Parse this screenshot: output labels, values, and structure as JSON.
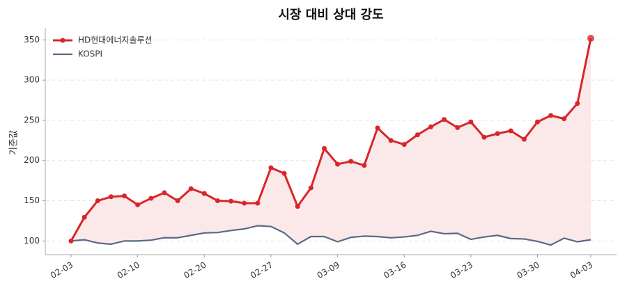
{
  "chart_data": {
    "type": "line",
    "title": "시장 대비 상대 강도",
    "y_label": "기준값",
    "categories": [
      "02-03",
      null,
      null,
      null,
      null,
      "02-10",
      null,
      null,
      null,
      null,
      "02-20",
      null,
      null,
      null,
      null,
      "02-27",
      null,
      null,
      null,
      null,
      "03-09",
      null,
      null,
      null,
      null,
      "03-16",
      null,
      null,
      null,
      null,
      "03-23",
      null,
      null,
      null,
      null,
      "03-30",
      null,
      null,
      null,
      "04-03"
    ],
    "series": [
      {
        "name": "HD현대에너지솔루션",
        "color": "#d7262b",
        "values": [
          100,
          129.5,
          150,
          155,
          156,
          145,
          153,
          160,
          150,
          165,
          159,
          150,
          149.5,
          147,
          147,
          191,
          184,
          143,
          166,
          215,
          195.5,
          199,
          194,
          240.5,
          225,
          220,
          232,
          242,
          251,
          241,
          248,
          229,
          233.5,
          237,
          226.5,
          248,
          256,
          252,
          271,
          352
        ]
      },
      {
        "name": "KOSPI",
        "color": "#5a6a85",
        "values": [
          100,
          101.5,
          97.5,
          96,
          100,
          100,
          101,
          104,
          104,
          107,
          110,
          110.5,
          113,
          115,
          119,
          118,
          110,
          96,
          105.5,
          105.5,
          99,
          104.5,
          106,
          105.5,
          104,
          105,
          107,
          112,
          109,
          109.5,
          102,
          105,
          107,
          103,
          102.5,
          99.5,
          95,
          103.5,
          99,
          101.5
        ]
      }
    ],
    "fill_between": true,
    "fill_color": "#fbe6e6",
    "ylim": [
      83,
      365
    ],
    "yticks": [
      100,
      150,
      200,
      250,
      300,
      350
    ],
    "grid": true,
    "legend": "upper-left"
  }
}
